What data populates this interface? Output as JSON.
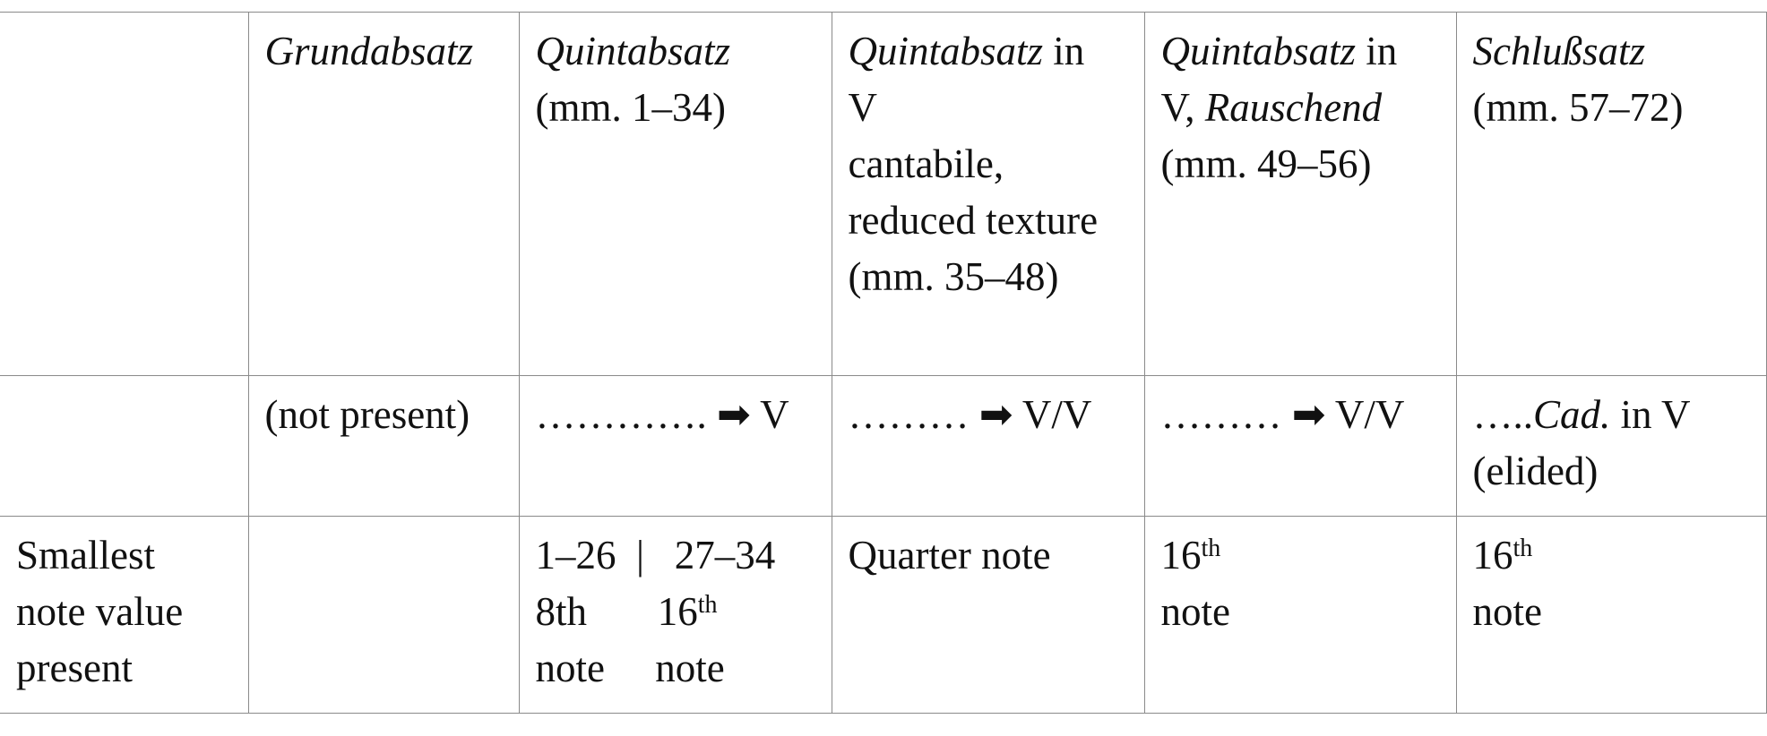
{
  "table": {
    "rows": [
      [
        null,
        [
          {
            "text": "Grundabsatz",
            "italic": true
          }
        ],
        [
          {
            "text": "Quintabsatz",
            "italic": true
          },
          {
            "text": "\n(mm. 1–34)"
          }
        ],
        [
          {
            "text": "Quintabsatz",
            "italic": true
          },
          {
            "text": " in\nV\ncantabile, reduced texture (mm. 35–48)"
          }
        ],
        [
          {
            "text": "Quintabsatz",
            "italic": true
          },
          {
            "text": " in V, "
          },
          {
            "text": "Rauschend",
            "italic": true
          },
          {
            "text": "\n(mm. 49–56)"
          }
        ],
        [
          {
            "text": "Schlußsatz",
            "italic": true
          },
          {
            "text": "\n(mm. 57–72)"
          }
        ]
      ],
      [
        null,
        "(not present)",
        "…………. ➡ V",
        "……… ➡ V/V",
        "……… ➡ V/V",
        [
          {
            "text": "….."
          },
          {
            "text": "Cad.",
            "italic": true
          },
          {
            "text": " in V\n(elided)"
          }
        ]
      ],
      [
        "Smallest\nnote value\npresent",
        null,
        [
          {
            "text": "1–26  |   27–34\n8th       16"
          },
          {
            "text": "th",
            "sup": true
          },
          {
            "text": "\nnote     note"
          }
        ],
        "Quarter note",
        [
          {
            "text": "16"
          },
          {
            "text": "th",
            "sup": true
          },
          {
            "text": "\nnote"
          }
        ],
        [
          {
            "text": "16"
          },
          {
            "text": "th",
            "sup": true
          },
          {
            "text": "\nnote"
          }
        ]
      ]
    ]
  }
}
